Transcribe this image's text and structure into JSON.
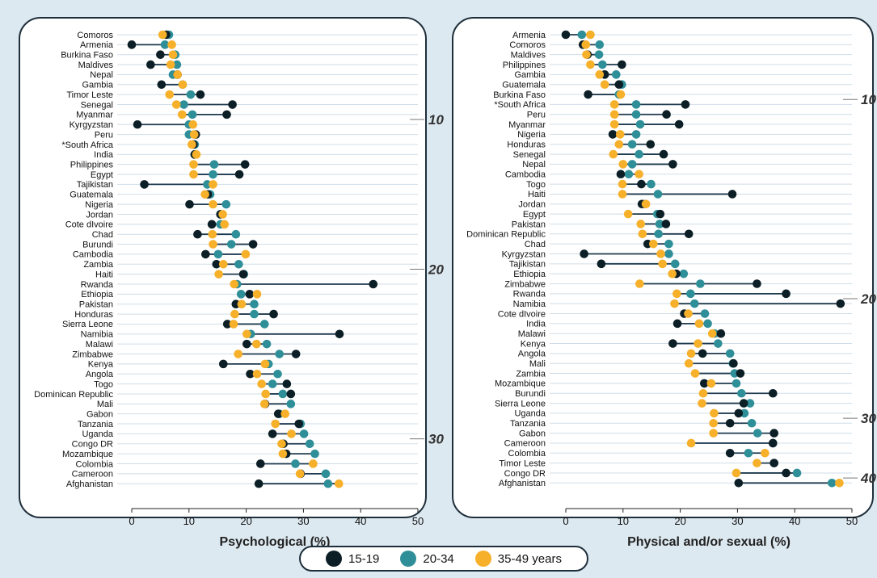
{
  "colors": {
    "s1519": "#0c1f26",
    "s2034": "#2f8f99",
    "s3549": "#f6b02a",
    "line": "#1e3a4f",
    "grid": "#cfdde8",
    "border": "#1e2e3a",
    "panel": "#ffffff",
    "bg": "#dde9f1"
  },
  "legend": {
    "items": [
      {
        "label": "15-19",
        "color": "#0c1f26"
      },
      {
        "label": "20-34",
        "color": "#2f8f99"
      },
      {
        "label": "35-49 years",
        "color": "#f6b02a"
      }
    ]
  },
  "chart_data": [
    {
      "type": "dumbbell",
      "xlabel": "Psychological (%)",
      "xlim": [
        0,
        50
      ],
      "xticks": [
        0,
        10,
        20,
        30,
        40,
        50
      ],
      "side_ticks": [
        {
          "label": "10",
          "after_index": 8
        },
        {
          "label": "20",
          "after_index": 23
        },
        {
          "label": "30",
          "after_index": 40
        }
      ],
      "categories": [
        "Comoros",
        "Armenia",
        "Burkina Faso",
        "Maldives",
        "Nepal",
        "Gambia",
        "Timor Leste",
        "Senegal",
        "Myanmar",
        "Kyrgyzstan",
        "Peru",
        "*South Africa",
        "India",
        "Philippines",
        "Egypt",
        "Tajikistan",
        "Guatemala",
        "Nigeria",
        "Jordan",
        "Cote dIvoire",
        "Chad",
        "Burundi",
        "Cambodia",
        "Zambia",
        "Haiti",
        "Rwanda",
        "Ethiopia",
        "Pakistan",
        "Honduras",
        "Sierra Leone",
        "Namibia",
        "Malawi",
        "Zimbabwe",
        "Kenya",
        "Angola",
        "Togo",
        "Dominican Republic",
        "Mali",
        "Gabon",
        "Tanzania",
        "Uganda",
        "Congo DR",
        "Mozambique",
        "Colombia",
        "Cameroon",
        "Afghanistan"
      ],
      "series": [
        {
          "name": "15-19",
          "values": [
            6,
            0,
            5,
            3.3,
            8,
            5.2,
            12,
            17.6,
            16.6,
            1,
            11.2,
            10.8,
            11,
            19.8,
            18.8,
            2.2,
            13.3,
            10.1,
            15.5,
            14,
            11.5,
            21.2,
            12.9,
            14.8,
            19.5,
            42.2,
            20.6,
            18.2,
            24.8,
            16.7,
            36.3,
            20.1,
            28.7,
            16,
            20.7,
            27.1,
            27.8,
            23.3,
            25.6,
            29.2,
            24.6,
            26.5,
            27,
            22.5,
            29.5,
            22.2
          ]
        },
        {
          "name": "20-34",
          "values": [
            6.5,
            5.8,
            7.6,
            7.9,
            7.2,
            8.9,
            10.3,
            9.1,
            10.6,
            10,
            10,
            11,
            11,
            14.4,
            14.2,
            13.2,
            13.7,
            16.5,
            15.5,
            15.5,
            18.2,
            17.4,
            15.1,
            18.7,
            19.6,
            18.4,
            19.1,
            21.4,
            21.4,
            23.2,
            20.8,
            23.6,
            25.8,
            23.9,
            25.5,
            24.6,
            26.4,
            27.8,
            25.8,
            29.5,
            30.1,
            31.1,
            32,
            28.6,
            33.9,
            34.3
          ]
        },
        {
          "name": "35-49 years",
          "values": [
            5.4,
            7,
            7.2,
            6.8,
            8,
            8.9,
            6.6,
            7.8,
            8.8,
            10.7,
            10.9,
            10.5,
            11.3,
            10.8,
            10.8,
            14.2,
            12.8,
            14.2,
            15.9,
            16.2,
            14.1,
            14.2,
            19.9,
            16,
            15.2,
            17.9,
            21.9,
            19.2,
            18,
            17.8,
            20.1,
            21.8,
            18.6,
            23.3,
            21.9,
            22.7,
            23.4,
            23.2,
            26.8,
            25.1,
            27.9,
            26.2,
            26.4,
            31.7,
            29.4,
            36.2
          ]
        }
      ]
    },
    {
      "type": "dumbbell",
      "xlabel": "Physical and/or sexual (%)",
      "xlim": [
        0,
        50
      ],
      "xticks": [
        0,
        10,
        20,
        30,
        40,
        50
      ],
      "side_ticks": [
        {
          "label": "10",
          "after_index": 6
        },
        {
          "label": "20",
          "after_index": 26
        },
        {
          "label": "30",
          "after_index": 38
        },
        {
          "label": "40",
          "after_index": 44
        }
      ],
      "categories": [
        "Armenia",
        "Comoros",
        "Maldives",
        "Philippines",
        "Gambia",
        "Guatemala",
        "Burkina Faso",
        "*South Africa",
        "Peru",
        "Myanmar",
        "Nigeria",
        "Honduras",
        "Senegal",
        "Nepal",
        "Cambodia",
        "Togo",
        "Haiti",
        "Jordan",
        "Egypt",
        "Pakistan",
        "Dominican Republic",
        "Chad",
        "Kyrgyzstan",
        "Tajikistan",
        "Ethiopia",
        "Zimbabwe",
        "Rwanda",
        "Namibia",
        "Cote dIvoire",
        "India",
        "Malawi",
        "Kenya",
        "Angola",
        "Mali",
        "Zambia",
        "Mozambique",
        "Burundi",
        "Sierra Leone",
        "Uganda",
        "Tanzania",
        "Gabon",
        "Cameroon",
        "Colombia",
        "Timor Leste",
        "Congo DR",
        "Afghanistan"
      ],
      "series": [
        {
          "name": "15-19",
          "values": [
            0,
            3,
            3.8,
            9.8,
            6.8,
            9.3,
            3.9,
            20.9,
            17.6,
            19.8,
            8.2,
            14.8,
            17.1,
            18.7,
            9.6,
            13.2,
            29.1,
            13.3,
            16.5,
            17.5,
            21.5,
            14.3,
            3.2,
            6.2,
            19.3,
            33.4,
            38.5,
            48,
            20.7,
            19.5,
            27.1,
            18.7,
            23.9,
            29.3,
            30.5,
            24.2,
            36.2,
            31.1,
            30.2,
            28.7,
            36.4,
            36.2,
            28.7,
            36.4,
            38.5,
            30.2
          ]
        },
        {
          "name": "20-34",
          "values": [
            2.8,
            5.9,
            5.8,
            6.4,
            8.8,
            9.8,
            9.3,
            12.3,
            12.3,
            13,
            12.3,
            11.6,
            12.8,
            11.6,
            11,
            14.9,
            16.1,
            13.8,
            16,
            16.4,
            16.2,
            18,
            18,
            19.1,
            20.6,
            23.5,
            21.8,
            22.5,
            24.3,
            24.8,
            26,
            26.6,
            28.7,
            29.2,
            29.5,
            29.8,
            30.7,
            32.2,
            31.2,
            32.5,
            33.5,
            36.2,
            31.9,
            36.4,
            40.4,
            46.5
          ]
        },
        {
          "name": "35-49 years",
          "values": [
            4.3,
            3.5,
            3.6,
            4.3,
            5.9,
            6.8,
            9.6,
            8.5,
            8.5,
            8.5,
            9.5,
            9.3,
            8.3,
            10,
            12.8,
            9.9,
            9.9,
            14,
            10.9,
            13.1,
            13.4,
            15.3,
            16.6,
            16.9,
            18.6,
            12.9,
            19.4,
            19,
            21.4,
            23.3,
            25.6,
            23.1,
            21.9,
            21.5,
            22.6,
            25.4,
            24,
            23.8,
            25.9,
            25.8,
            25.8,
            21.9,
            34.8,
            33.4,
            29.8,
            47.8
          ]
        }
      ]
    }
  ]
}
